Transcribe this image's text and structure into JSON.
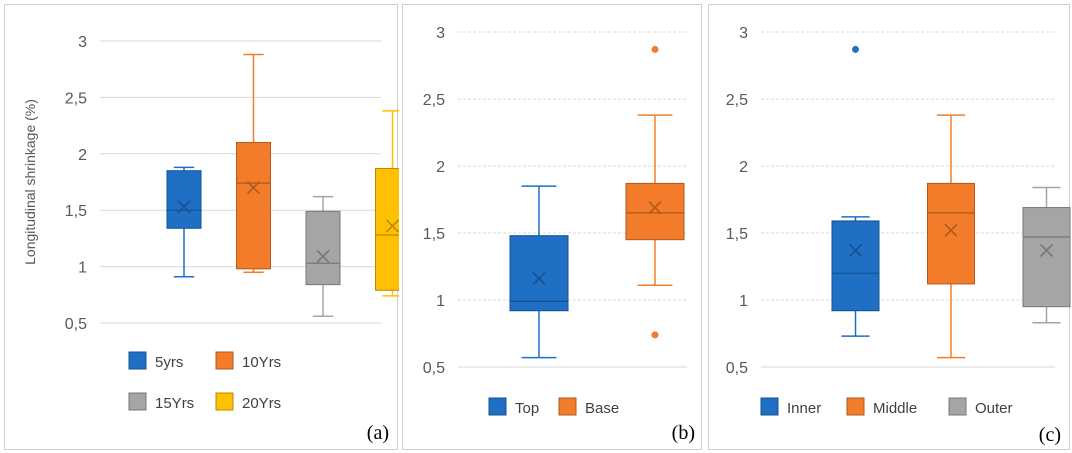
{
  "chart_data": [
    {
      "type": "box",
      "panel_label": "(a)",
      "ylabel": "Longitudinal shrinkage (%)",
      "ylim": [
        0.5,
        3
      ],
      "yticks": [
        "0,5",
        "1",
        "1,5",
        "2",
        "2,5",
        "3"
      ],
      "grid": true,
      "legend_position": "bottom",
      "series": [
        {
          "name": "5yrs",
          "color": "#1f6fc5",
          "min": 0.91,
          "q1": 1.34,
          "median": 1.5,
          "q3": 1.85,
          "max": 1.88,
          "mean": 1.53,
          "outliers": []
        },
        {
          "name": "10Yrs",
          "color": "#f27c2a",
          "min": 0.95,
          "q1": 0.98,
          "median": 1.74,
          "q3": 2.1,
          "max": 2.88,
          "mean": 1.7,
          "outliers": []
        },
        {
          "name": "15Yrs",
          "color": "#a5a5a5",
          "min": 0.56,
          "q1": 0.84,
          "median": 1.03,
          "q3": 1.49,
          "max": 1.62,
          "mean": 1.09,
          "outliers": []
        },
        {
          "name": "20Yrs",
          "color": "#ffc000",
          "min": 0.74,
          "q1": 0.79,
          "median": 1.28,
          "q3": 1.87,
          "max": 2.38,
          "mean": 1.36,
          "outliers": []
        }
      ]
    },
    {
      "type": "box",
      "panel_label": "(b)",
      "ylabel": "",
      "ylim": [
        0.5,
        3
      ],
      "yticks": [
        "0,5",
        "1",
        "1,5",
        "2",
        "2,5",
        "3"
      ],
      "grid": true,
      "legend_position": "bottom",
      "series": [
        {
          "name": "Top",
          "color": "#1f6fc5",
          "min": 0.57,
          "q1": 0.92,
          "median": 0.99,
          "q3": 1.48,
          "max": 1.85,
          "mean": 1.16,
          "outliers": []
        },
        {
          "name": "Base",
          "color": "#f27c2a",
          "min": 1.11,
          "q1": 1.45,
          "median": 1.65,
          "q3": 1.87,
          "max": 2.38,
          "mean": 1.69,
          "outliers": [
            0.74,
            2.87
          ]
        }
      ]
    },
    {
      "type": "box",
      "panel_label": "(c)",
      "ylabel": "",
      "ylim": [
        0.5,
        3
      ],
      "yticks": [
        "0,5",
        "1",
        "1,5",
        "2",
        "2,5",
        "3"
      ],
      "grid": true,
      "legend_position": "bottom",
      "series": [
        {
          "name": "Inner",
          "color": "#1f6fc5",
          "min": 0.73,
          "q1": 0.92,
          "median": 1.2,
          "q3": 1.59,
          "max": 1.62,
          "mean": 1.37,
          "outliers": [
            2.87
          ]
        },
        {
          "name": "Middle",
          "color": "#f27c2a",
          "min": 0.57,
          "q1": 1.12,
          "median": 1.65,
          "q3": 1.87,
          "max": 2.38,
          "mean": 1.52,
          "outliers": []
        },
        {
          "name": "Outer",
          "color": "#a5a5a5",
          "min": 0.83,
          "q1": 0.95,
          "median": 1.47,
          "q3": 1.69,
          "max": 1.84,
          "mean": 1.37,
          "outliers": []
        }
      ]
    }
  ]
}
